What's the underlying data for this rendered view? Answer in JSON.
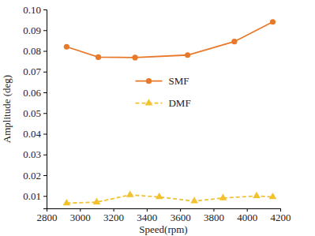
{
  "chart_data": {
    "type": "line",
    "x_label": "Speed(rpm)",
    "y_label": "Amplitude (deg)",
    "xlim": [
      2800,
      4200
    ],
    "xticks": [
      2800,
      3000,
      3200,
      3400,
      3600,
      3800,
      4000,
      4200
    ],
    "ylim": [
      0.004,
      0.1
    ],
    "yticks": [
      0.01,
      0.02,
      0.03,
      0.04,
      0.05,
      0.06,
      0.07,
      0.08,
      0.09,
      {
        "value": 0.1,
        "label": "0.10"
      }
    ],
    "legend": "center",
    "grid": false,
    "series": [
      {
        "name": "SMF",
        "color": "#e8792a",
        "marker": "circle",
        "line_style": "solid",
        "x": [
          2920,
          3110,
          3330,
          3645,
          3925,
          4155
        ],
        "values": [
          0.082,
          0.077,
          0.0768,
          0.078,
          0.0845,
          0.094
        ]
      },
      {
        "name": "DMF",
        "color": "#f2c12e",
        "marker": "triangle",
        "line_style": "dashed",
        "x": [
          2920,
          3100,
          3300,
          3475,
          3685,
          3857,
          4058,
          4155
        ],
        "values": [
          0.0065,
          0.007,
          0.0105,
          0.0095,
          0.0075,
          0.009,
          0.01,
          0.0095
        ]
      }
    ]
  }
}
